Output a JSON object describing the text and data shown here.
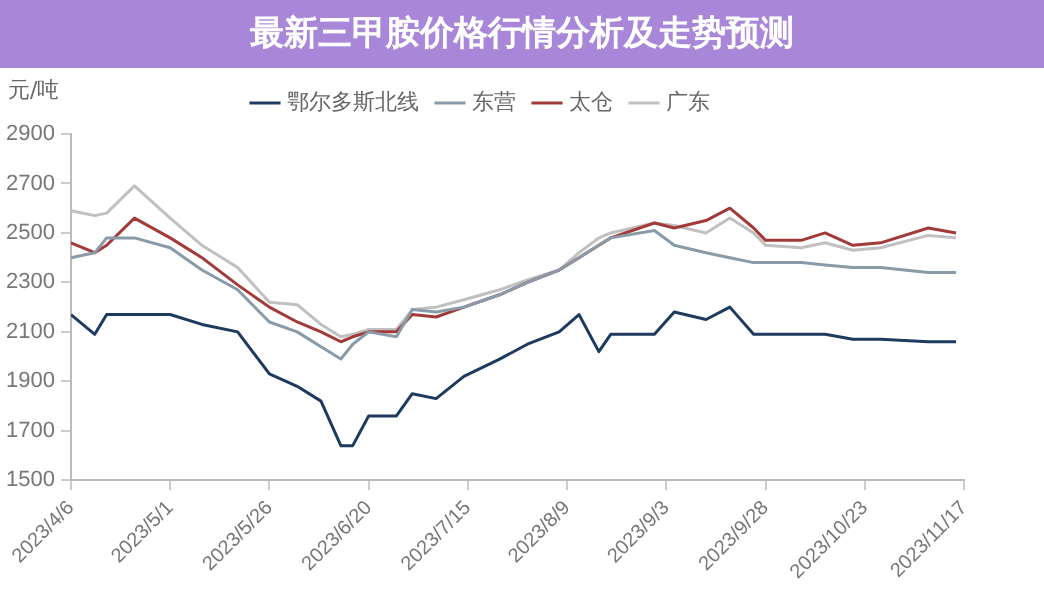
{
  "chart_data": {
    "type": "line",
    "title": "最新三甲胺价格行情分析及走势预测",
    "ylabel": "元/吨",
    "x": [
      "2023-04-06",
      "2023-04-12",
      "2023-04-15",
      "2023-04-22",
      "2023-05-01",
      "2023-05-09",
      "2023-05-18",
      "2023-05-26",
      "2023-06-02",
      "2023-06-08",
      "2023-06-13",
      "2023-06-16",
      "2023-06-20",
      "2023-06-27",
      "2023-07-01",
      "2023-07-07",
      "2023-07-14",
      "2023-07-23",
      "2023-07-30",
      "2023-08-07",
      "2023-08-12",
      "2023-08-17",
      "2023-08-20",
      "2023-08-31",
      "2023-09-05",
      "2023-09-13",
      "2023-09-19",
      "2023-09-25",
      "2023-09-28",
      "2023-10-07",
      "2023-10-13",
      "2023-10-20",
      "2023-10-27",
      "2023-11-08",
      "2023-11-15"
    ],
    "series": [
      {
        "name": "鄂尔多斯北线",
        "color": "#1f3a5f",
        "values": [
          2170,
          2090,
          2170,
          2170,
          2170,
          2130,
          2100,
          1930,
          1880,
          1820,
          1640,
          1640,
          1760,
          1760,
          1850,
          1830,
          1920,
          1990,
          2050,
          2100,
          2170,
          2020,
          2090,
          2090,
          2180,
          2150,
          2200,
          2090,
          2090,
          2090,
          2090,
          2070,
          2070,
          2060,
          2060
        ]
      },
      {
        "name": "东营",
        "color": "#8a9ba8",
        "values": [
          2400,
          2420,
          2480,
          2480,
          2440,
          2350,
          2270,
          2140,
          2100,
          2040,
          1990,
          2050,
          2100,
          2080,
          2190,
          2180,
          2200,
          2250,
          2300,
          2350,
          2400,
          2450,
          2480,
          2510,
          2450,
          2420,
          2400,
          2380,
          2380,
          2380,
          2370,
          2360,
          2360,
          2340,
          2340
        ]
      },
      {
        "name": "太仓",
        "color": "#a33a3a",
        "values": [
          2460,
          2420,
          2450,
          2560,
          2480,
          2400,
          2290,
          2200,
          2140,
          2100,
          2060,
          2080,
          2100,
          2100,
          2170,
          2160,
          2200,
          2250,
          2300,
          2350,
          2400,
          2450,
          2480,
          2540,
          2520,
          2550,
          2600,
          2520,
          2470,
          2470,
          2500,
          2450,
          2460,
          2520,
          2500
        ]
      },
      {
        "name": "广东",
        "color": "#c0c0c0",
        "values": [
          2590,
          2570,
          2580,
          2690,
          2560,
          2450,
          2360,
          2220,
          2210,
          2130,
          2080,
          2090,
          2110,
          2110,
          2190,
          2200,
          2230,
          2270,
          2310,
          2350,
          2420,
          2480,
          2500,
          2540,
          2530,
          2500,
          2560,
          2500,
          2450,
          2440,
          2460,
          2430,
          2440,
          2490,
          2480
        ]
      }
    ],
    "ylim": [
      1500,
      2900
    ],
    "yticks": [
      1500,
      1700,
      1900,
      2100,
      2300,
      2500,
      2700,
      2900
    ],
    "xlim": [
      "2023-04-06",
      "2023-11-17"
    ],
    "xticks": [
      {
        "value": "2023-04-06",
        "label": "2023/4/6"
      },
      {
        "value": "2023-05-01",
        "label": "2023/5/1"
      },
      {
        "value": "2023-05-26",
        "label": "2023/5/26"
      },
      {
        "value": "2023-06-20",
        "label": "2023/6/20"
      },
      {
        "value": "2023-07-15",
        "label": "2023/7/15"
      },
      {
        "value": "2023-08-09",
        "label": "2023/8/9"
      },
      {
        "value": "2023-09-03",
        "label": "2023/9/3"
      },
      {
        "value": "2023-09-28",
        "label": "2023/9/28"
      },
      {
        "value": "2023-10-23",
        "label": "2023/10/23"
      },
      {
        "value": "2023-11-17",
        "label": "2023/11/17"
      }
    ],
    "grid": false,
    "legend": "top",
    "marker": "none",
    "line_style": "solid"
  }
}
